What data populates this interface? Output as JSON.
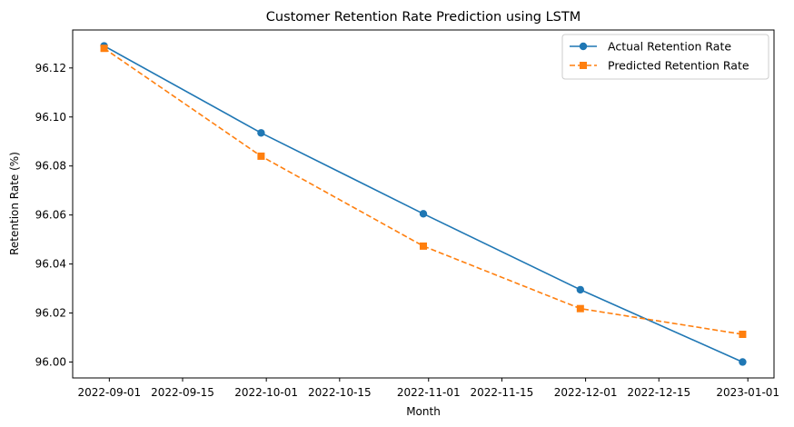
{
  "chart_data": {
    "type": "line",
    "title": "Customer Retention Rate Prediction using LSTM",
    "xlabel": "Month",
    "ylabel": "Retention Rate (%)",
    "x": [
      "2022-08-31",
      "2022-09-30",
      "2022-10-31",
      "2022-11-30",
      "2022-12-31"
    ],
    "x_ticks": [
      "2022-09-01",
      "2022-09-15",
      "2022-10-01",
      "2022-10-15",
      "2022-11-01",
      "2022-11-15",
      "2022-12-01",
      "2022-12-15",
      "2023-01-01"
    ],
    "xlim": [
      "2022-08-25",
      "2023-01-06"
    ],
    "y_ticks": [
      "96.00",
      "96.02",
      "96.04",
      "96.06",
      "96.08",
      "96.10",
      "96.12"
    ],
    "ylim": [
      95.9935,
      96.1355
    ],
    "grid": false,
    "legend_position": "top-right",
    "series": [
      {
        "name": "Actual Retention Rate",
        "values": [
          96.129,
          96.0935,
          96.0605,
          96.0295,
          96.0
        ],
        "color": "#1f77b4",
        "line_style": "solid",
        "marker": "circle"
      },
      {
        "name": "Predicted Retention Rate",
        "values": [
          96.128,
          96.084,
          96.0473,
          96.0218,
          96.0113
        ],
        "color": "#ff7f0e",
        "line_style": "dashed",
        "marker": "square"
      }
    ]
  }
}
